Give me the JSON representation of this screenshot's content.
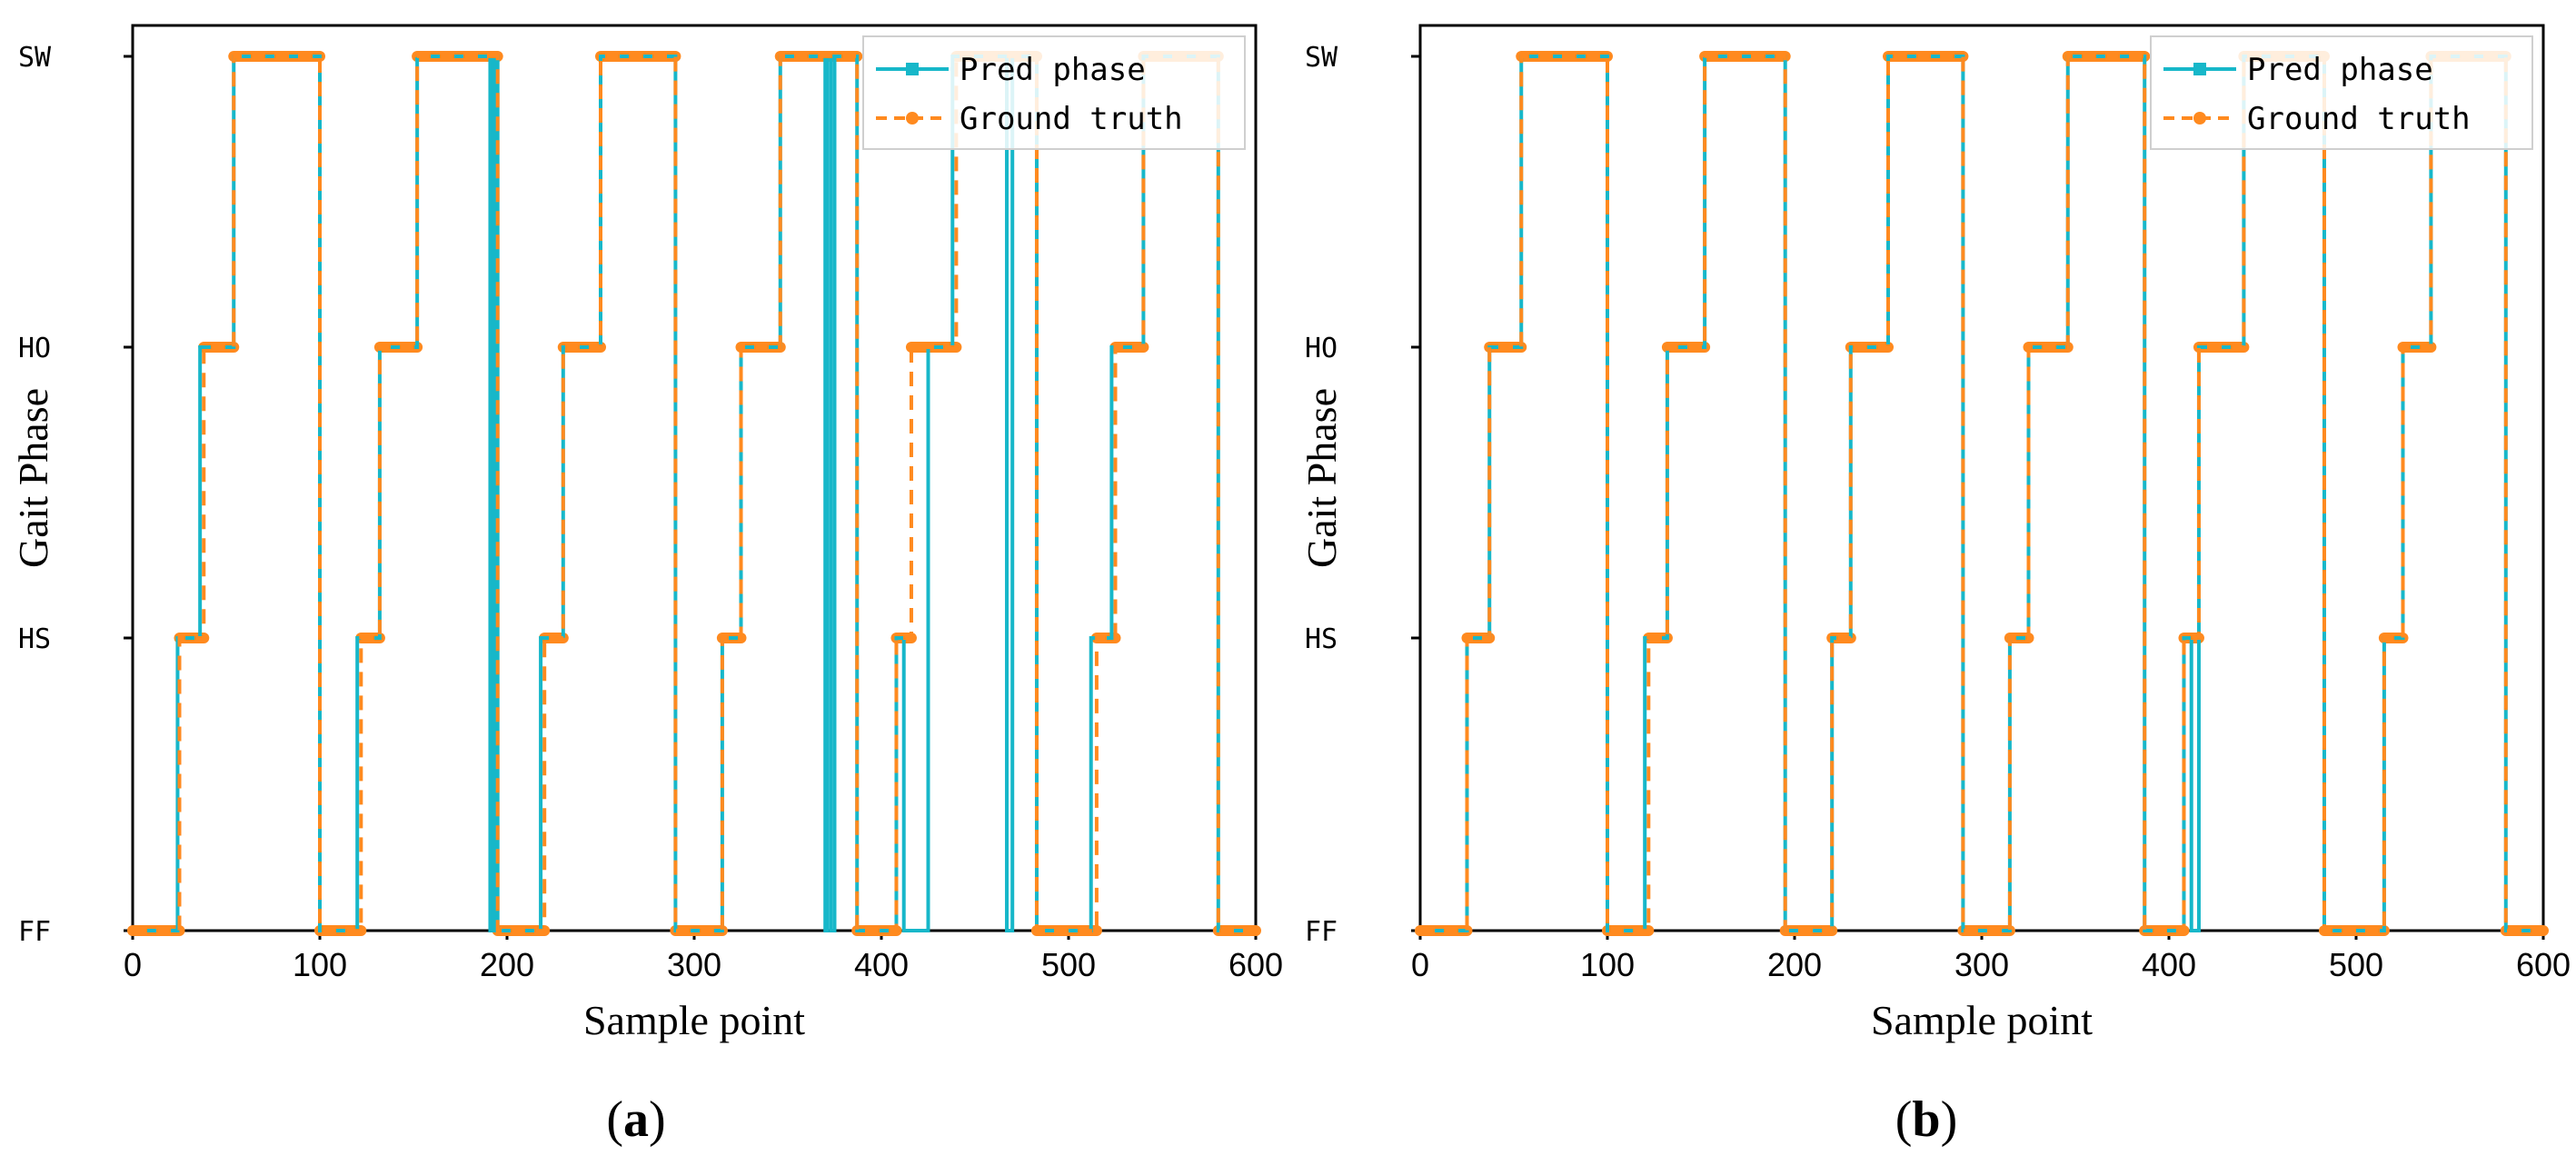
{
  "colors": {
    "pred": "#17b7c9",
    "ground_truth": "#ff8a1f",
    "axis": "#000000",
    "background": "#ffffff"
  },
  "chart_data": [
    {
      "id": "a",
      "type": "line",
      "caption_open": "(",
      "caption_letter": "a",
      "caption_close": ")",
      "xlabel": "Sample point",
      "ylabel": "Gait Phase",
      "xlim": [
        0,
        600
      ],
      "x_ticks": [
        0,
        100,
        200,
        300,
        400,
        500,
        600
      ],
      "y_categories": [
        "FF",
        "HS",
        "HO",
        "SW"
      ],
      "legend_position": "top-right",
      "series": [
        {
          "name": "Pred phase",
          "style": "solid-square-marker",
          "steps": [
            [
              0,
              "FF"
            ],
            [
              24,
              "HS"
            ],
            [
              36,
              "HO"
            ],
            [
              54,
              "SW"
            ],
            [
              100,
              "FF"
            ],
            [
              120,
              "HS"
            ],
            [
              132,
              "HO"
            ],
            [
              152,
              "SW"
            ],
            [
              191,
              "FF"
            ],
            [
              192,
              "SW"
            ],
            [
              193,
              "FF"
            ],
            [
              194,
              "SW"
            ],
            [
              195,
              "FF"
            ],
            [
              218,
              "HS"
            ],
            [
              230,
              "HO"
            ],
            [
              250,
              "SW"
            ],
            [
              290,
              "FF"
            ],
            [
              315,
              "HS"
            ],
            [
              325,
              "HO"
            ],
            [
              346,
              "SW"
            ],
            [
              370,
              "FF"
            ],
            [
              371,
              "SW"
            ],
            [
              373,
              "FF"
            ],
            [
              375,
              "SW"
            ],
            [
              387,
              "FF"
            ],
            [
              408,
              "HS"
            ],
            [
              412,
              "FF"
            ],
            [
              425,
              "HO"
            ],
            [
              438,
              "SW"
            ],
            [
              467,
              "FF"
            ],
            [
              470,
              "SW"
            ],
            [
              483,
              "FF"
            ],
            [
              512,
              "HS"
            ],
            [
              523,
              "HO"
            ],
            [
              540,
              "SW"
            ],
            [
              580,
              "FF"
            ],
            [
              600,
              "FF"
            ]
          ]
        },
        {
          "name": "Ground truth",
          "style": "dashed-circle-marker",
          "steps": [
            [
              0,
              "FF"
            ],
            [
              25,
              "HS"
            ],
            [
              38,
              "HO"
            ],
            [
              54,
              "SW"
            ],
            [
              100,
              "FF"
            ],
            [
              122,
              "HS"
            ],
            [
              132,
              "HO"
            ],
            [
              152,
              "SW"
            ],
            [
              195,
              "FF"
            ],
            [
              220,
              "HS"
            ],
            [
              230,
              "HO"
            ],
            [
              250,
              "SW"
            ],
            [
              290,
              "FF"
            ],
            [
              315,
              "HS"
            ],
            [
              325,
              "HO"
            ],
            [
              346,
              "SW"
            ],
            [
              387,
              "FF"
            ],
            [
              408,
              "HS"
            ],
            [
              416,
              "HO"
            ],
            [
              440,
              "SW"
            ],
            [
              483,
              "FF"
            ],
            [
              515,
              "HS"
            ],
            [
              525,
              "HO"
            ],
            [
              540,
              "SW"
            ],
            [
              580,
              "FF"
            ],
            [
              600,
              "FF"
            ]
          ]
        }
      ]
    },
    {
      "id": "b",
      "type": "line",
      "caption_open": "(",
      "caption_letter": "b",
      "caption_close": ")",
      "xlabel": "Sample point",
      "ylabel": "Gait Phase",
      "xlim": [
        0,
        600
      ],
      "x_ticks": [
        0,
        100,
        200,
        300,
        400,
        500,
        600
      ],
      "y_categories": [
        "FF",
        "HS",
        "HO",
        "SW"
      ],
      "legend_position": "top-right",
      "series": [
        {
          "name": "Pred phase",
          "style": "solid-square-marker",
          "steps": [
            [
              0,
              "FF"
            ],
            [
              25,
              "HS"
            ],
            [
              37,
              "HO"
            ],
            [
              54,
              "SW"
            ],
            [
              100,
              "FF"
            ],
            [
              120,
              "HS"
            ],
            [
              132,
              "HO"
            ],
            [
              152,
              "SW"
            ],
            [
              195,
              "FF"
            ],
            [
              220,
              "HS"
            ],
            [
              230,
              "HO"
            ],
            [
              250,
              "SW"
            ],
            [
              290,
              "FF"
            ],
            [
              315,
              "HS"
            ],
            [
              325,
              "HO"
            ],
            [
              346,
              "SW"
            ],
            [
              387,
              "FF"
            ],
            [
              408,
              "HS"
            ],
            [
              412,
              "FF"
            ],
            [
              416,
              "HO"
            ],
            [
              440,
              "SW"
            ],
            [
              483,
              "FF"
            ],
            [
              515,
              "HS"
            ],
            [
              525,
              "HO"
            ],
            [
              540,
              "SW"
            ],
            [
              580,
              "FF"
            ],
            [
              600,
              "FF"
            ]
          ]
        },
        {
          "name": "Ground truth",
          "style": "dashed-circle-marker",
          "steps": [
            [
              0,
              "FF"
            ],
            [
              25,
              "HS"
            ],
            [
              37,
              "HO"
            ],
            [
              54,
              "SW"
            ],
            [
              100,
              "FF"
            ],
            [
              122,
              "HS"
            ],
            [
              132,
              "HO"
            ],
            [
              152,
              "SW"
            ],
            [
              195,
              "FF"
            ],
            [
              220,
              "HS"
            ],
            [
              230,
              "HO"
            ],
            [
              250,
              "SW"
            ],
            [
              290,
              "FF"
            ],
            [
              315,
              "HS"
            ],
            [
              325,
              "HO"
            ],
            [
              346,
              "SW"
            ],
            [
              387,
              "FF"
            ],
            [
              408,
              "HS"
            ],
            [
              416,
              "HO"
            ],
            [
              440,
              "SW"
            ],
            [
              483,
              "FF"
            ],
            [
              515,
              "HS"
            ],
            [
              525,
              "HO"
            ],
            [
              540,
              "SW"
            ],
            [
              580,
              "FF"
            ],
            [
              600,
              "FF"
            ]
          ]
        }
      ]
    }
  ]
}
